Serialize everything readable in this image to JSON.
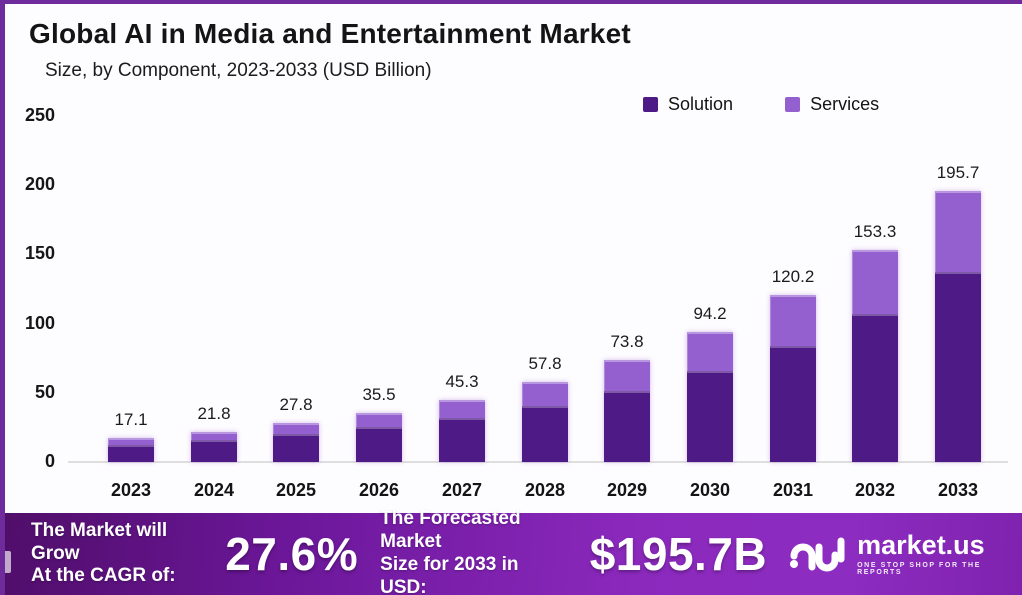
{
  "header": {
    "title": "Global AI in Media and Entertainment Market",
    "subtitle": "Size, by Component, 2023-2033 (USD Billion)"
  },
  "chart_data": {
    "type": "bar",
    "stacked": true,
    "title": "Global AI in Media and Entertainment Market",
    "subtitle": "Size, by Component, 2023-2033 (USD Billion)",
    "categories": [
      "2023",
      "2024",
      "2025",
      "2026",
      "2027",
      "2028",
      "2029",
      "2030",
      "2031",
      "2032",
      "2033"
    ],
    "series": [
      {
        "name": "Solution",
        "color": "#4e1a86",
        "values": [
          12.3,
          15.7,
          19.9,
          25.4,
          32.0,
          40.6,
          51.5,
          65.9,
          83.6,
          106.9,
          137.3
        ]
      },
      {
        "name": "Services",
        "color": "#9460d0",
        "values": [
          4.8,
          6.1,
          7.9,
          10.1,
          13.3,
          17.2,
          22.3,
          28.3,
          36.6,
          46.4,
          58.4
        ]
      }
    ],
    "totals": [
      17.1,
      21.8,
      27.8,
      35.5,
      45.3,
      57.8,
      73.8,
      94.2,
      120.2,
      153.3,
      195.7
    ],
    "total_labels": [
      "17.1",
      "21.8",
      "27.8",
      "35.5",
      "45.3",
      "57.8",
      "73.8",
      "94.2",
      "120.2",
      "153.3",
      "195.7"
    ],
    "xlabel": "",
    "ylabel": "",
    "ylim": [
      0,
      250
    ],
    "yticks": [
      0,
      50,
      100,
      150,
      200,
      250
    ],
    "grid": false,
    "legend_position": "top-right"
  },
  "banner": {
    "cagr_label_line1": "The Market will Grow",
    "cagr_label_line2": "At the CAGR of:",
    "cagr_value": "27.6%",
    "forecast_label_line1": "The Forecasted Market",
    "forecast_label_line2": "Size for 2033 in USD:",
    "forecast_value": "$195.7B",
    "brand": {
      "name": "market.us",
      "tagline": "ONE STOP SHOP FOR THE REPORTS"
    }
  },
  "colors": {
    "solution": "#4e1a86",
    "services": "#9460d0",
    "frame_border": "#6f2b9c",
    "banner_gradient_start": "#500e6a",
    "banner_gradient_end": "#8d2cc1",
    "axis_line": "#dedede",
    "text": "#141414"
  }
}
